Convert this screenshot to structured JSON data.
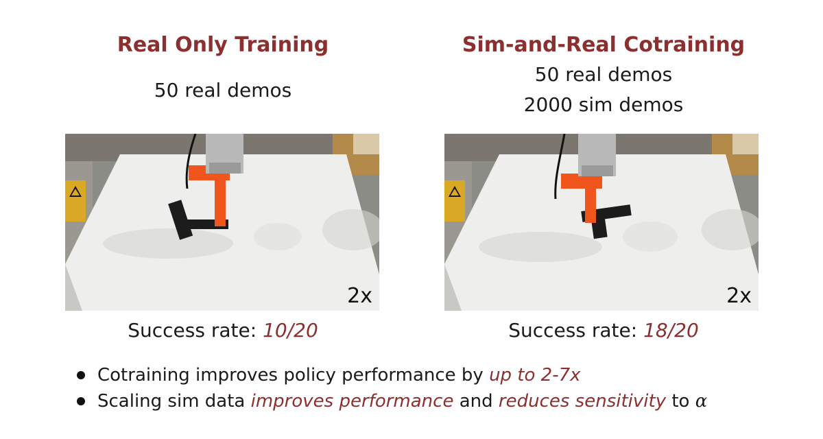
{
  "left_panel": {
    "title": "Real Only Training",
    "demos": [
      "50 real demos"
    ],
    "speed_label": "2x",
    "success_label": "Success rate: ",
    "success_value": "10/20"
  },
  "right_panel": {
    "title": "Sim-and-Real Cotraining",
    "demos": [
      "50 real demos",
      "2000 sim demos"
    ],
    "speed_label": "2x",
    "success_label": "Success rate: ",
    "success_value": "18/20"
  },
  "bullets": [
    {
      "segments": [
        {
          "text": "Cotraining improves policy performance by ",
          "accent": false
        },
        {
          "text": "up to 2-7x",
          "accent": true
        }
      ]
    },
    {
      "segments": [
        {
          "text": "Scaling sim data ",
          "accent": false
        },
        {
          "text": "improves performance",
          "accent": true
        },
        {
          "text": " and ",
          "accent": false
        },
        {
          "text": "reduces sensitivity",
          "accent": true
        },
        {
          "text": " to ",
          "accent": false
        },
        {
          "text": "α",
          "accent": false
        }
      ]
    }
  ],
  "colors": {
    "accent": "#8c2f2f",
    "text": "#1a1a1a",
    "robot_orange": "#f0551e",
    "block": "#1c1c1c",
    "table": "#eeeeec"
  },
  "icons": {
    "warning_sticker": "warning-icon"
  }
}
